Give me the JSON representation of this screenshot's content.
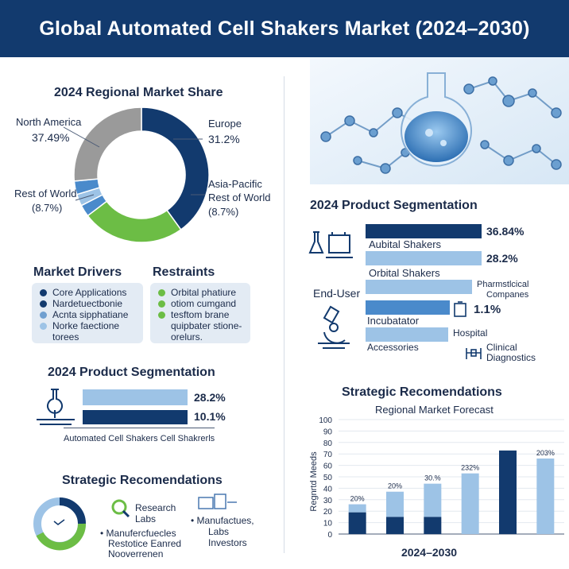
{
  "header": {
    "title": "Global Automated Cell Shakers Market (2024–2030)"
  },
  "donut": {
    "title": "2024 Regional Market Share",
    "labels": {
      "north_america": "North America",
      "north_america_value": "37.49%",
      "europe": "Europe",
      "europe_value": "31.2%",
      "asia_pacific": "Asia-Pacific",
      "asia_rest": "Rest of World",
      "asia_rest_value": "(8.7%)",
      "rest_world": "Rest of World",
      "rest_world_value": "(8.7%)"
    }
  },
  "drivers": {
    "title": "Market Drivers",
    "items": [
      "Core Applications",
      "Nardetuectbonie",
      "Acnta sipphatiane",
      "Norke faectione"
    ],
    "extra": "torees"
  },
  "restraints": {
    "title": "Restraints",
    "items": [
      "Orbital phatiure",
      "otiom cumgand",
      "tesftom brane"
    ],
    "extra1": "quipbater stione-",
    "extra2": "orelurs."
  },
  "seg_left": {
    "title": "2024 Product Segmentation",
    "values": [
      "28.2%",
      "10.1%"
    ],
    "caption": "Automated Cell Shakers Cell Shakrerls"
  },
  "strat_left": {
    "title": "Strategic Recomendations",
    "research": "Research",
    "labs": "Labs",
    "bullet1a": "Manufercfuecles",
    "bullet1b": "Restotice Eanred",
    "bullet1c": "Nooverrenen",
    "bullet2a": "Manufactues,",
    "bullet2b": "Labs",
    "bullet2c": "Investors"
  },
  "seg_right": {
    "title": "2024 Product Segmentation",
    "v1": "36.84%",
    "l1": "Aubital Shakers",
    "v2": "28.2%",
    "l2": "Orbital Shakers",
    "enduser": "End-User",
    "pharma1": "Pharmstlcical",
    "pharma2": "Companes",
    "v3": "1.1%",
    "l3": "Incubatator",
    "hospital": "Hospital",
    "l4": "Accessories",
    "clinical1": "Clinical",
    "clinical2": "Diagnostics"
  },
  "chart_data": [
    {
      "type": "pie",
      "title": "2024 Regional Market Share",
      "labels": [
        "North America",
        "Europe",
        "Asia-Pacific / Rest of World",
        "Rest of World"
      ],
      "values": [
        37.49,
        31.2,
        8.7,
        8.7
      ]
    },
    {
      "type": "bar",
      "title": "Strategic Recomendations",
      "subtitle": "Regional Market Forecast",
      "xlabel": "2024–2030",
      "ylabel": "Regnrtd Meeds",
      "yticks": [
        0,
        10,
        20,
        30,
        40,
        50,
        60,
        70,
        80,
        90,
        100
      ],
      "ylim": [
        0,
        100
      ],
      "data_labels": [
        "20%",
        "20%",
        "30.%",
        "232%",
        "",
        "203%"
      ],
      "series": [
        {
          "values": [
            19,
            15,
            15,
            0,
            0,
            0
          ]
        },
        {
          "values": [
            7,
            22,
            29,
            53,
            73,
            66
          ]
        }
      ],
      "colors": {
        "base": "#123a6e",
        "top": "#9dc3e6"
      }
    }
  ],
  "colors": {
    "navy": "#123a6e",
    "light_blue": "#9dc3e6",
    "green": "#6cbd45",
    "gray": "#9a9a9a"
  }
}
